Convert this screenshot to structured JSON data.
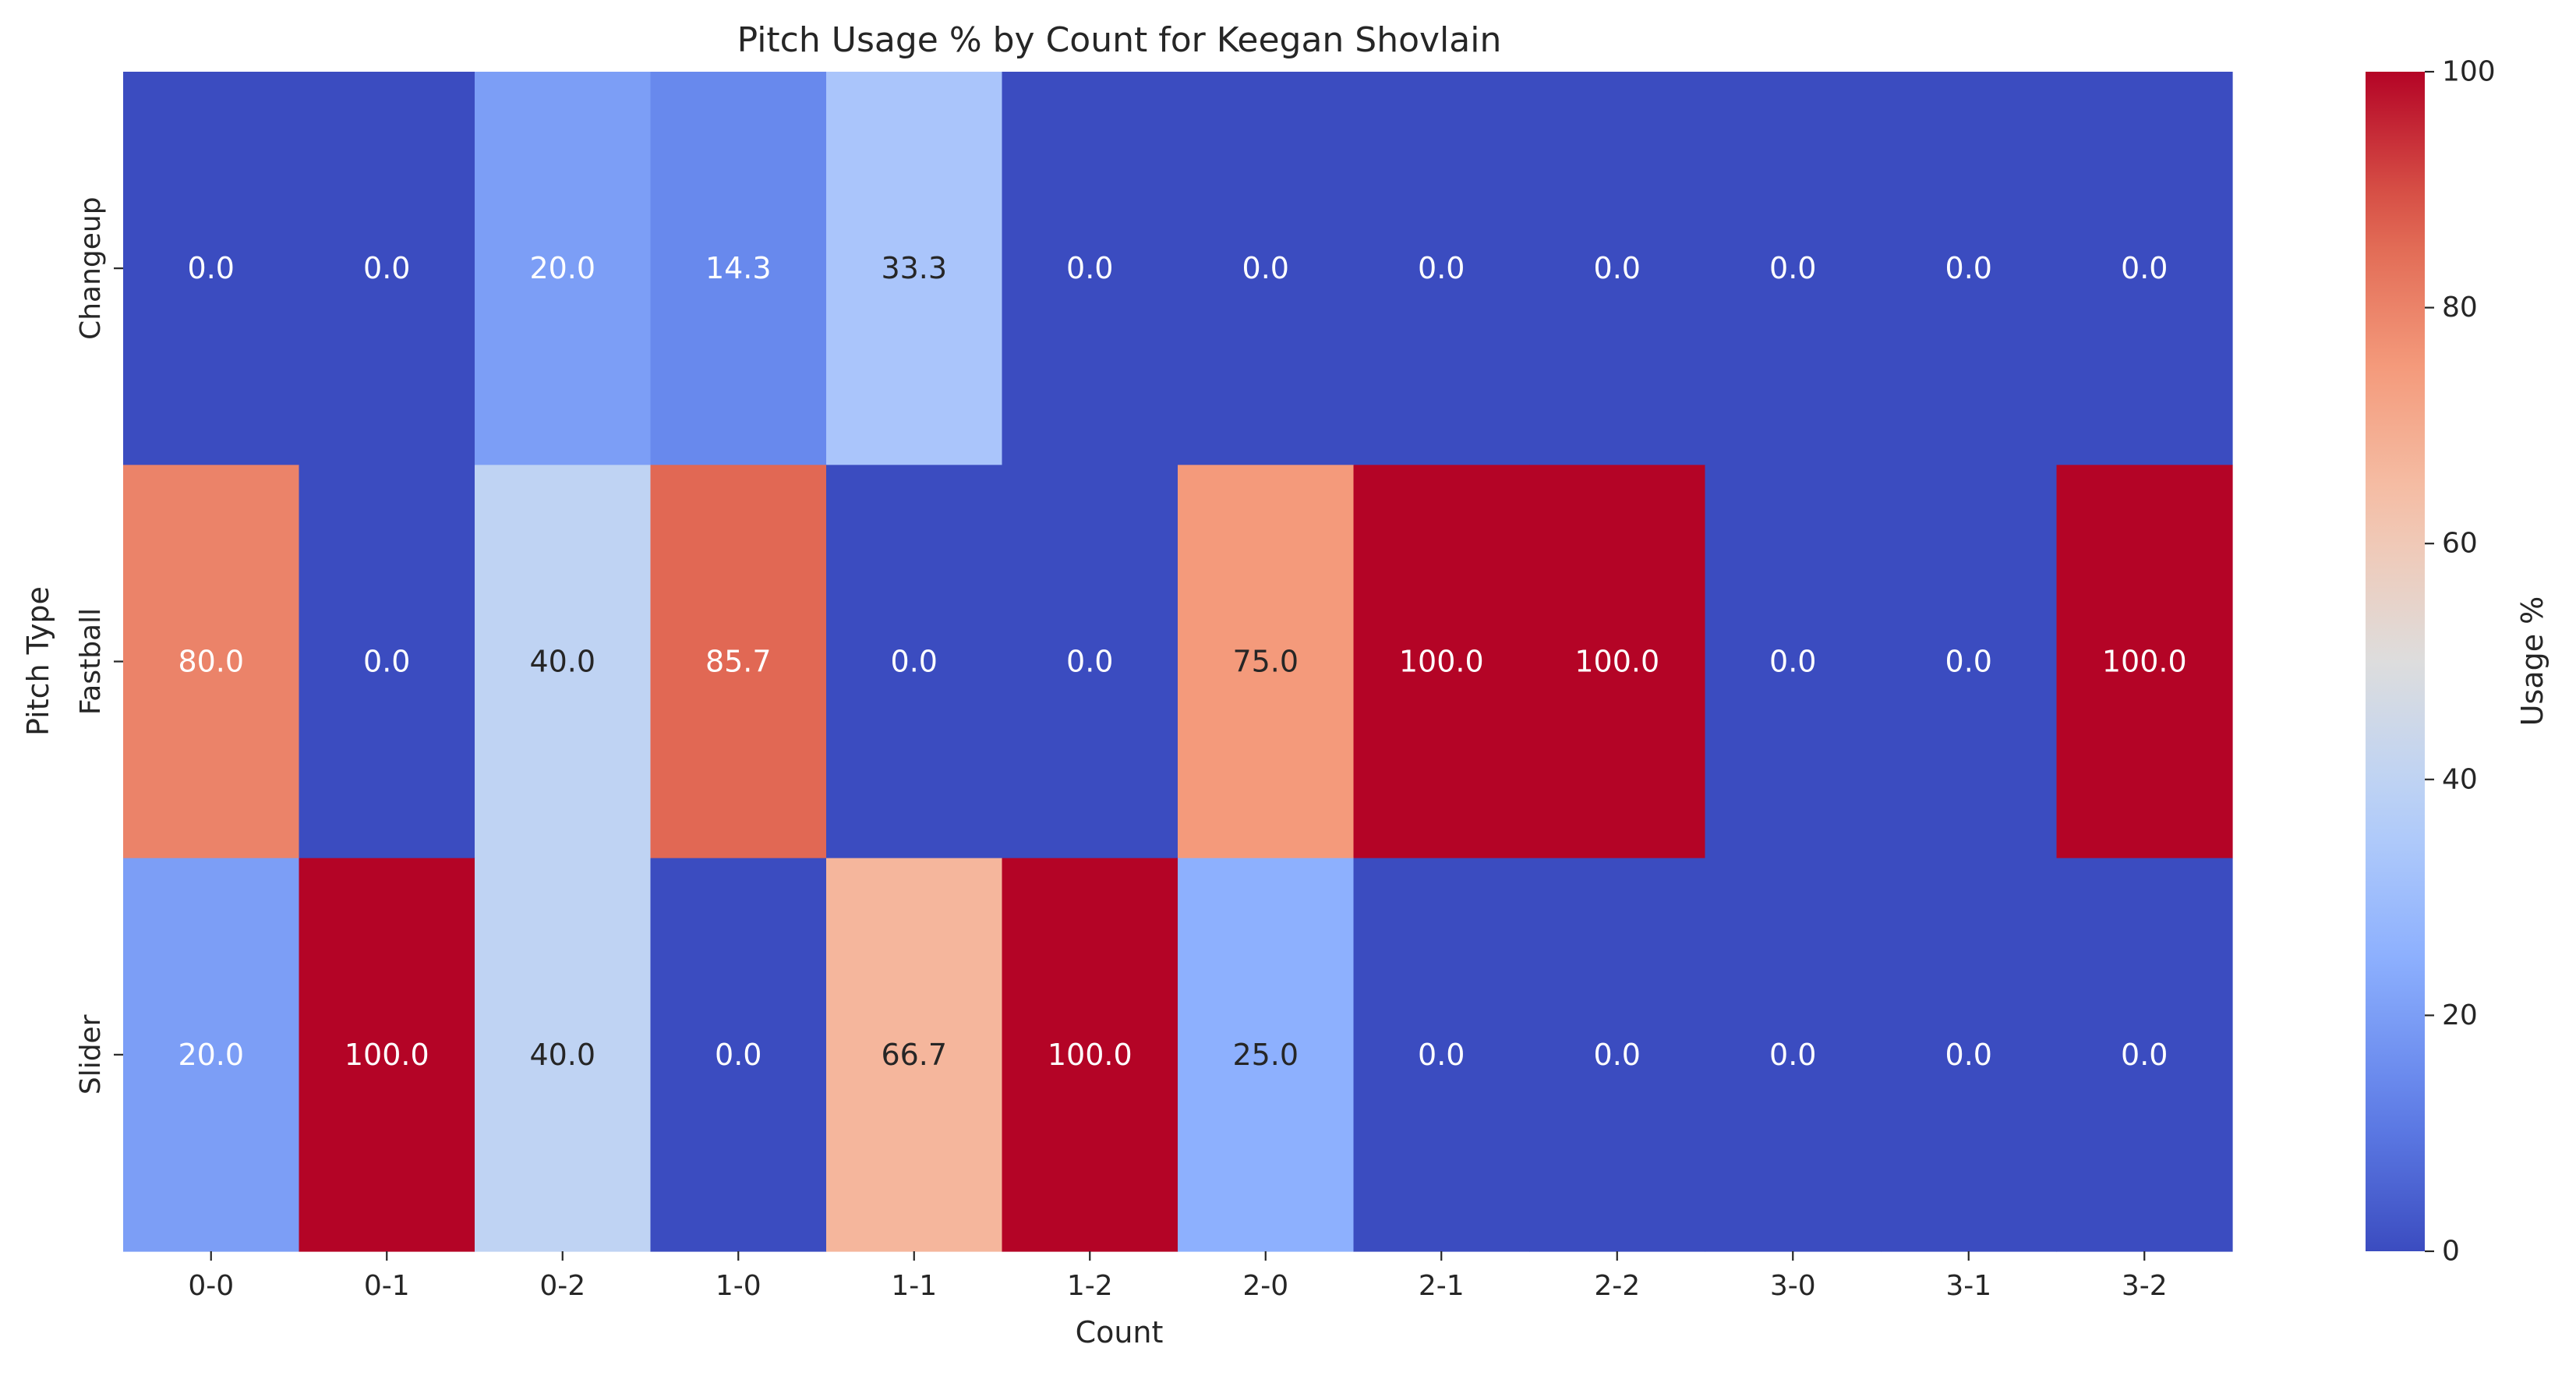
{
  "chart_data": {
    "type": "heatmap",
    "title": "Pitch Usage % by Count for Keegan Shovlain",
    "xlabel": "Count",
    "ylabel": "Pitch Type",
    "x_categories": [
      "0-0",
      "0-1",
      "0-2",
      "1-0",
      "1-1",
      "1-2",
      "2-0",
      "2-1",
      "2-2",
      "3-0",
      "3-1",
      "3-2"
    ],
    "y_categories": [
      "Changeup",
      "Fastball",
      "Slider"
    ],
    "values": [
      [
        0.0,
        0.0,
        20.0,
        14.3,
        33.3,
        0.0,
        0.0,
        0.0,
        0.0,
        0.0,
        0.0,
        0.0
      ],
      [
        80.0,
        0.0,
        40.0,
        85.7,
        0.0,
        0.0,
        75.0,
        100.0,
        100.0,
        0.0,
        0.0,
        100.0
      ],
      [
        20.0,
        100.0,
        40.0,
        0.0,
        66.7,
        100.0,
        25.0,
        0.0,
        0.0,
        0.0,
        0.0,
        0.0
      ]
    ],
    "value_format": "0.0",
    "colormap": "coolwarm",
    "vmin": 0,
    "vmax": 100,
    "colorbar": {
      "label": "Usage %",
      "ticks": [
        0,
        20,
        40,
        60,
        80,
        100
      ]
    }
  }
}
